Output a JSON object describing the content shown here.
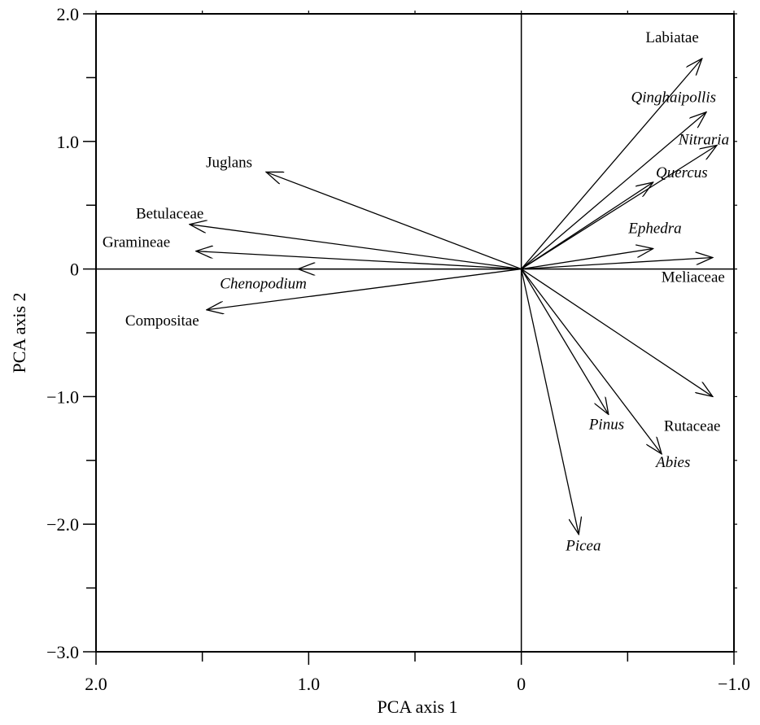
{
  "chart_data": {
    "type": "scatter",
    "subtype": "pca-biplot",
    "title": "",
    "xlabel": "PCA axis 1",
    "ylabel": "PCA axis 2",
    "xlim": [
      2.0,
      -1.0
    ],
    "ylim": [
      -3.0,
      2.0
    ],
    "x_reversed": true,
    "x_ticks": [
      "2.0",
      "1.0",
      "0",
      "−1.0"
    ],
    "y_ticks": [
      "2.0",
      "1.0",
      "0",
      "−1.0",
      "−2.0",
      "−3.0"
    ],
    "grid": false,
    "zero_lines": true,
    "vectors": [
      {
        "label": "Labiatae",
        "x": -0.85,
        "y": 1.65,
        "italic": false
      },
      {
        "label": "Qinghaipollis",
        "x": -0.87,
        "y": 1.23,
        "italic": true
      },
      {
        "label": "Nitraria",
        "x": -0.92,
        "y": 0.97,
        "italic": true
      },
      {
        "label": "Quercus",
        "x": -0.62,
        "y": 0.68,
        "italic": true
      },
      {
        "label": "Ephedra",
        "x": -0.62,
        "y": 0.16,
        "italic": true
      },
      {
        "label": "Meliaceae",
        "x": -0.9,
        "y": 0.09,
        "italic": false
      },
      {
        "label": "Rutaceae",
        "x": -0.9,
        "y": -1.0,
        "italic": false
      },
      {
        "label": "Pinus",
        "x": -0.41,
        "y": -1.14,
        "italic": true
      },
      {
        "label": "Abies",
        "x": -0.66,
        "y": -1.45,
        "italic": true
      },
      {
        "label": "Picea",
        "x": -0.27,
        "y": -2.08,
        "italic": true
      },
      {
        "label": "Juglans",
        "x": 1.2,
        "y": 0.76,
        "italic": false
      },
      {
        "label": "Betulaceae",
        "x": 1.56,
        "y": 0.35,
        "italic": false
      },
      {
        "label": "Gramineae",
        "x": 1.53,
        "y": 0.14,
        "italic": false
      },
      {
        "label": "Chenopodium",
        "x": 1.05,
        "y": 0.0,
        "italic": true
      },
      {
        "label": "Compositae",
        "x": 1.48,
        "y": -0.32,
        "italic": false
      }
    ]
  }
}
